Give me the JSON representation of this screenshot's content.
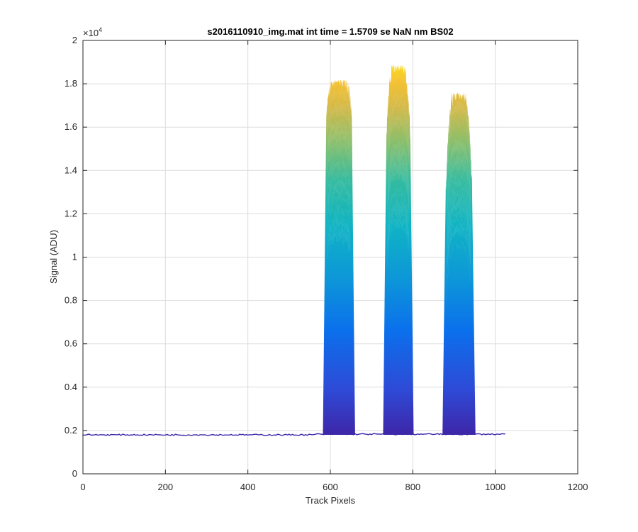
{
  "chart_data": {
    "type": "area",
    "title": "s2016110910_img.mat int time = 1.5709 se  NaN nm BS02",
    "xlabel": "Track Pixels",
    "ylabel": "Signal (ADU)",
    "y_exponent_label": "×10",
    "y_exponent": "4",
    "xlim": [
      0,
      1200
    ],
    "ylim": [
      0,
      20000
    ],
    "x_ticks": [
      0,
      200,
      400,
      600,
      800,
      1000,
      1200
    ],
    "x_tick_labels": [
      "0",
      "200",
      "400",
      "600",
      "800",
      "1000",
      "1200"
    ],
    "y_ticks": [
      0,
      2000,
      4000,
      6000,
      8000,
      10000,
      12000,
      14000,
      16000,
      18000,
      20000
    ],
    "y_tick_labels": [
      "0",
      "0.2",
      "0.4",
      "0.6",
      "0.8",
      "1",
      "1.2",
      "1.4",
      "1.6",
      "1.8",
      "2"
    ],
    "grid": true,
    "colormap": "parula",
    "colors": {
      "baseline": "#3e26a8",
      "low": "#2c3fb0",
      "mid": "#00a9c9",
      "high": "#f9fb0e"
    },
    "baseline": {
      "x_range": [
        0,
        1024
      ],
      "value": 1800
    },
    "peaks": [
      {
        "x_start": 590,
        "x_end": 652,
        "peak_value": 18200,
        "edge_value": 16500
      },
      {
        "x_start": 736,
        "x_end": 794,
        "peak_value": 18900,
        "edge_value": 15500
      },
      {
        "x_start": 880,
        "x_end": 944,
        "peak_value": 17600,
        "edge_value": 13000
      }
    ]
  }
}
